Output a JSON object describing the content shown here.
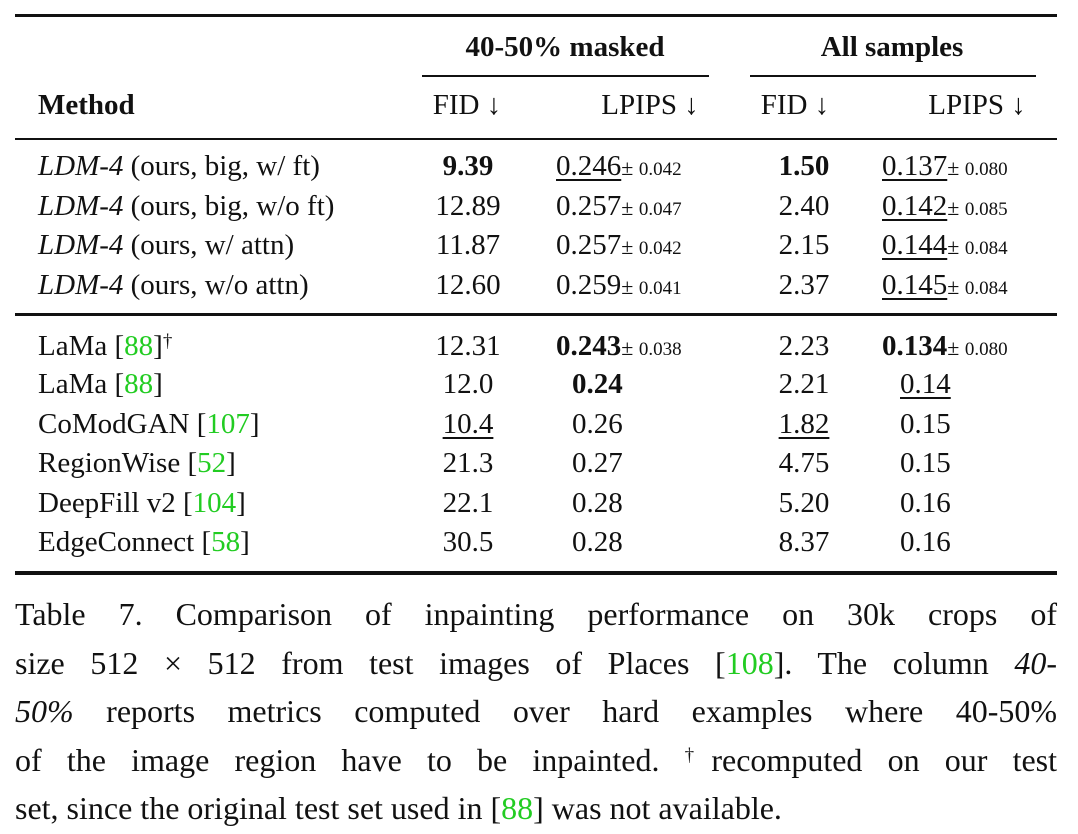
{
  "header": {
    "group1": "40-50% masked",
    "group2": "All samples",
    "method": "Method",
    "fid": "FID ↓",
    "lpips": "LPIPS ↓"
  },
  "rows": [
    {
      "method": "LDM-4",
      "method_italic": true,
      "suffix": " (ours, big, w/ ft)",
      "fid1": "9.39",
      "fid1_fmt": "b",
      "lpips1": "0.246",
      "lpips1_fmt": "u",
      "lpips1_std": "0.042",
      "fid2": "1.50",
      "fid2_fmt": "b",
      "lpips2": "0.137",
      "lpips2_fmt": "u",
      "lpips2_std": "0.080"
    },
    {
      "method": "LDM-4",
      "method_italic": true,
      "suffix": " (ours, big, w/o ft)",
      "fid1": "12.89",
      "lpips1": "0.257",
      "lpips1_std": "0.047",
      "fid2": "2.40",
      "lpips2": "0.142",
      "lpips2_fmt": "u",
      "lpips2_std": "0.085"
    },
    {
      "method": "LDM-4",
      "method_italic": true,
      "suffix": " (ours, w/ attn)",
      "fid1": "11.87",
      "lpips1": "0.257",
      "lpips1_std": "0.042",
      "fid2": "2.15",
      "lpips2": "0.144",
      "lpips2_fmt": "u",
      "lpips2_std": "0.084"
    },
    {
      "method": "LDM-4",
      "method_italic": true,
      "suffix": " (ours, w/o attn)",
      "fid1": "12.60",
      "lpips1": "0.259",
      "lpips1_std": "0.041",
      "fid2": "2.37",
      "lpips2": "0.145",
      "lpips2_fmt": "u",
      "lpips2_std": "0.084"
    },
    {
      "method": "LaMa ",
      "cite": "88",
      "dagger": "†",
      "fid1": "12.31",
      "lpips1": "0.243",
      "lpips1_fmt": "b",
      "lpips1_std": "0.038",
      "fid2": "2.23",
      "lpips2": "0.134",
      "lpips2_fmt": "b",
      "lpips2_std": "0.080"
    },
    {
      "method": "LaMa ",
      "cite": "88",
      "fid1": "12.0",
      "lpips1": "0.24",
      "lpips1_fmt": "b",
      "fid2": "2.21",
      "lpips2": "0.14",
      "lpips2_fmt": "u"
    },
    {
      "method": "CoModGAN ",
      "cite": "107",
      "fid1": "10.4",
      "fid1_fmt": "u",
      "lpips1": "0.26",
      "fid2": "1.82",
      "fid2_fmt": "u",
      "lpips2": "0.15"
    },
    {
      "method": "RegionWise ",
      "cite": "52",
      "fid1": "21.3",
      "lpips1": "0.27",
      "fid2": "4.75",
      "lpips2": "0.15"
    },
    {
      "method": "DeepFill v2 ",
      "cite": "104",
      "fid1": "22.1",
      "lpips1": "0.28",
      "fid2": "5.20",
      "lpips2": "0.16"
    },
    {
      "method": "EdgeConnect ",
      "cite": "58",
      "fid1": "30.5",
      "lpips1": "0.28",
      "fid2": "8.37",
      "lpips2": "0.16"
    }
  ],
  "caption": [
    [
      {
        "t": "Table 7.  Comparison of inpainting performance on 30k crops of"
      }
    ],
    [
      {
        "t": "size 512 × 512 from test images of Places ["
      },
      {
        "t": "108",
        "s": "cite"
      },
      {
        "t": "]. The column "
      },
      {
        "t": "40-",
        "s": "it"
      }
    ],
    [
      {
        "t": "50%",
        "s": "it"
      },
      {
        "t": " reports metrics computed over hard examples where 40-50%"
      }
    ],
    [
      {
        "t": "of the image region have to be inpainted. "
      },
      {
        "t": "†",
        "s": "sup"
      },
      {
        "t": "recomputed on our test"
      }
    ],
    [
      {
        "t": "set, since the original test set used in ["
      },
      {
        "t": "88",
        "s": "cite"
      },
      {
        "t": "] was not available."
      }
    ]
  ],
  "colors": {
    "cite": "#22cc22",
    "text": "#111111"
  }
}
